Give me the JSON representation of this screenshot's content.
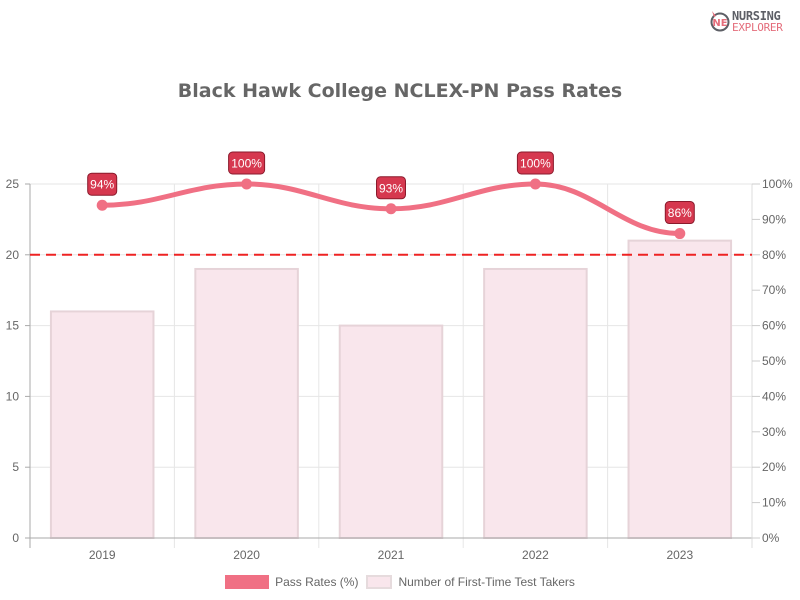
{
  "logo": {
    "line1": "NURSING",
    "line2": "EXPLORER",
    "mark": "NE"
  },
  "chart_data": {
    "type": "bar",
    "title": "Black Hawk College NCLEX-PN Pass Rates",
    "categories": [
      "2019",
      "2020",
      "2021",
      "2022",
      "2023"
    ],
    "series": [
      {
        "name": "Pass Rates (%)",
        "type": "line",
        "axis": "right",
        "values": [
          94,
          100,
          93,
          100,
          86
        ],
        "labels": [
          "94%",
          "100%",
          "93%",
          "100%",
          "86%"
        ],
        "color": "#f07084"
      },
      {
        "name": "Number of First-Time Test Takers",
        "type": "bar",
        "axis": "left",
        "values": [
          16,
          19,
          15,
          19,
          21
        ],
        "color": "#f9e6ec",
        "border": "#e6d3d8"
      }
    ],
    "reference_line": {
      "value": 80,
      "axis": "right",
      "style": "dashed",
      "color": "#ee2222"
    },
    "left_axis": {
      "ticks": [
        "0",
        "5",
        "10",
        "15",
        "20",
        "25"
      ],
      "ylim": [
        0,
        25
      ]
    },
    "right_axis": {
      "ticks": [
        "0%",
        "10%",
        "20%",
        "30%",
        "40%",
        "50%",
        "60%",
        "70%",
        "80%",
        "90%",
        "100%"
      ],
      "ylim": [
        0,
        100
      ]
    },
    "xlabel": "",
    "ylabel": "",
    "grid": true,
    "legend_position": "bottom",
    "label_color": "#d6384f"
  },
  "legend": {
    "items": [
      "Pass Rates (%)",
      "Number of First-Time Test Takers"
    ]
  }
}
